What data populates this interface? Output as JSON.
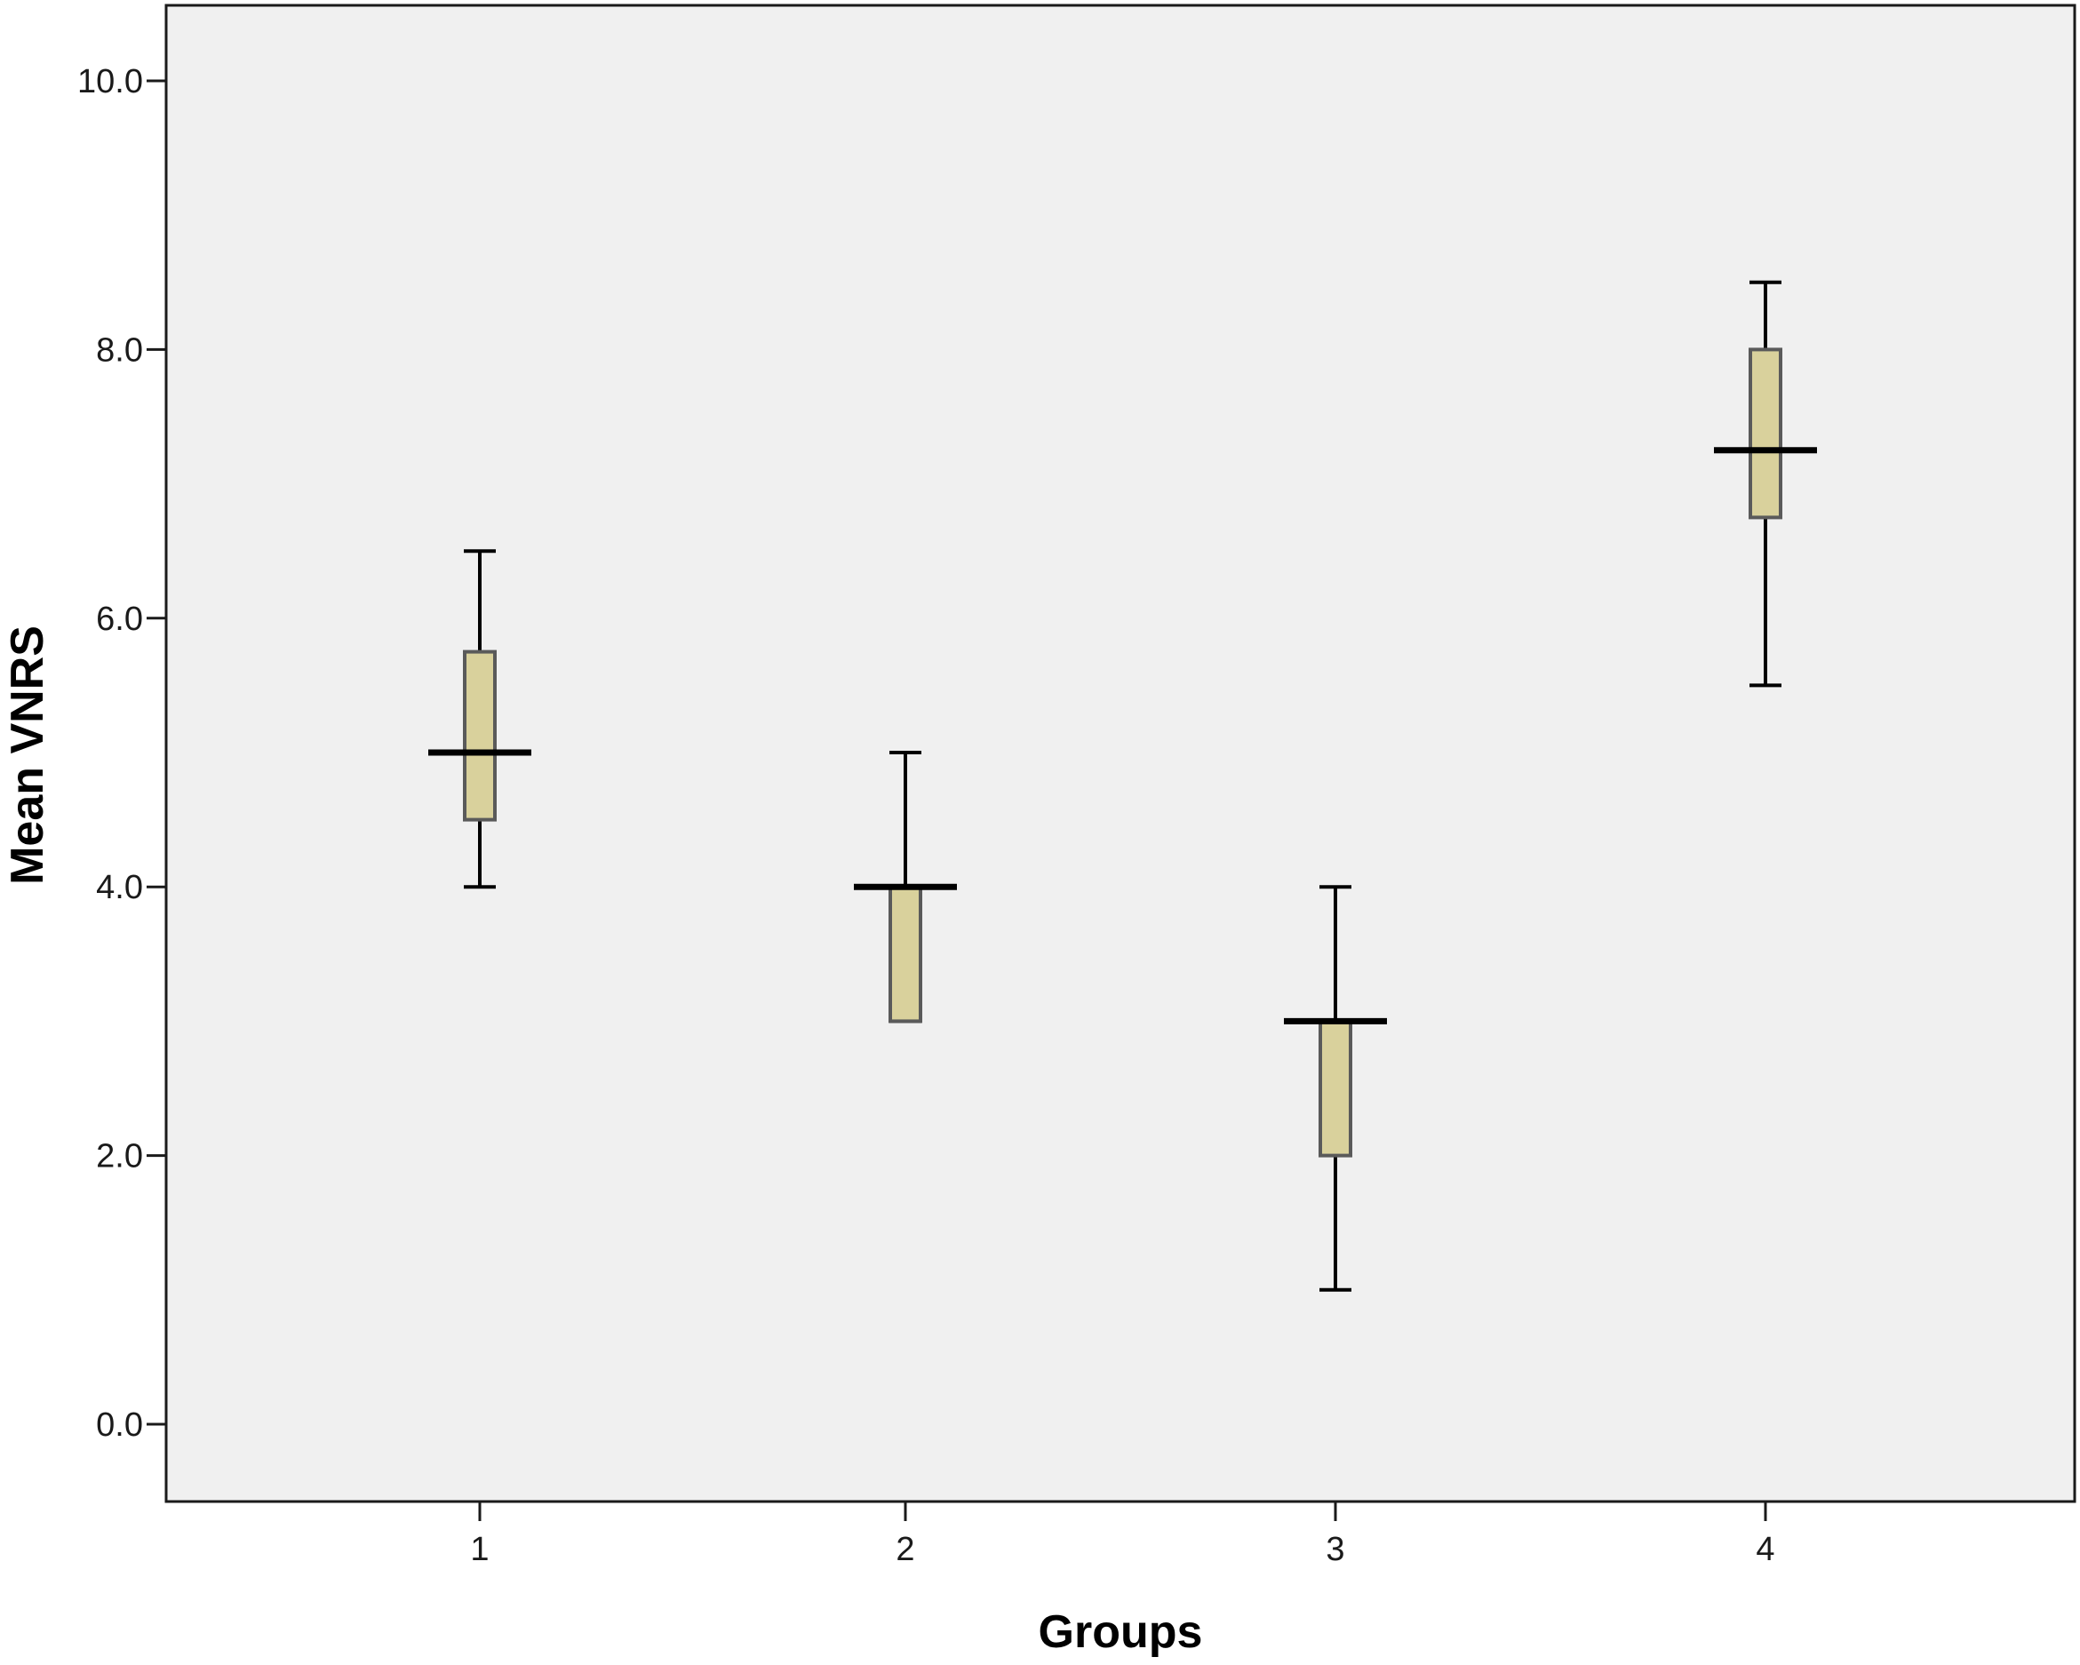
{
  "chart_data": {
    "type": "boxplot",
    "title": "",
    "xlabel": "Groups",
    "ylabel": "Mean VNRS",
    "categories": [
      "1",
      "2",
      "3",
      "4"
    ],
    "ylim": [
      0,
      10
    ],
    "yticks": [
      0,
      2,
      4,
      6,
      8,
      10
    ],
    "ytick_labels": [
      "0.0",
      "2.0",
      "4.0",
      "6.0",
      "8.0",
      "10.0"
    ],
    "boxes": [
      {
        "category": "1",
        "min": 4.0,
        "q1": 4.5,
        "median": 5.0,
        "q3": 5.75,
        "max": 6.5
      },
      {
        "category": "2",
        "min": 3.0,
        "q1": 3.0,
        "median": 4.0,
        "q3": 4.0,
        "max": 5.0
      },
      {
        "category": "3",
        "min": 1.0,
        "q1": 2.0,
        "median": 3.0,
        "q3": 3.0,
        "max": 4.0
      },
      {
        "category": "4",
        "min": 5.5,
        "q1": 6.75,
        "median": 7.25,
        "q3": 8.0,
        "max": 8.5
      }
    ],
    "grid": false,
    "colors": {
      "plot_background": "#f0f0f0",
      "box_fill": "#d9d19c",
      "box_stroke": "#5a5a5a",
      "whisker": "#000000",
      "axis": "#1a1a1a"
    }
  }
}
